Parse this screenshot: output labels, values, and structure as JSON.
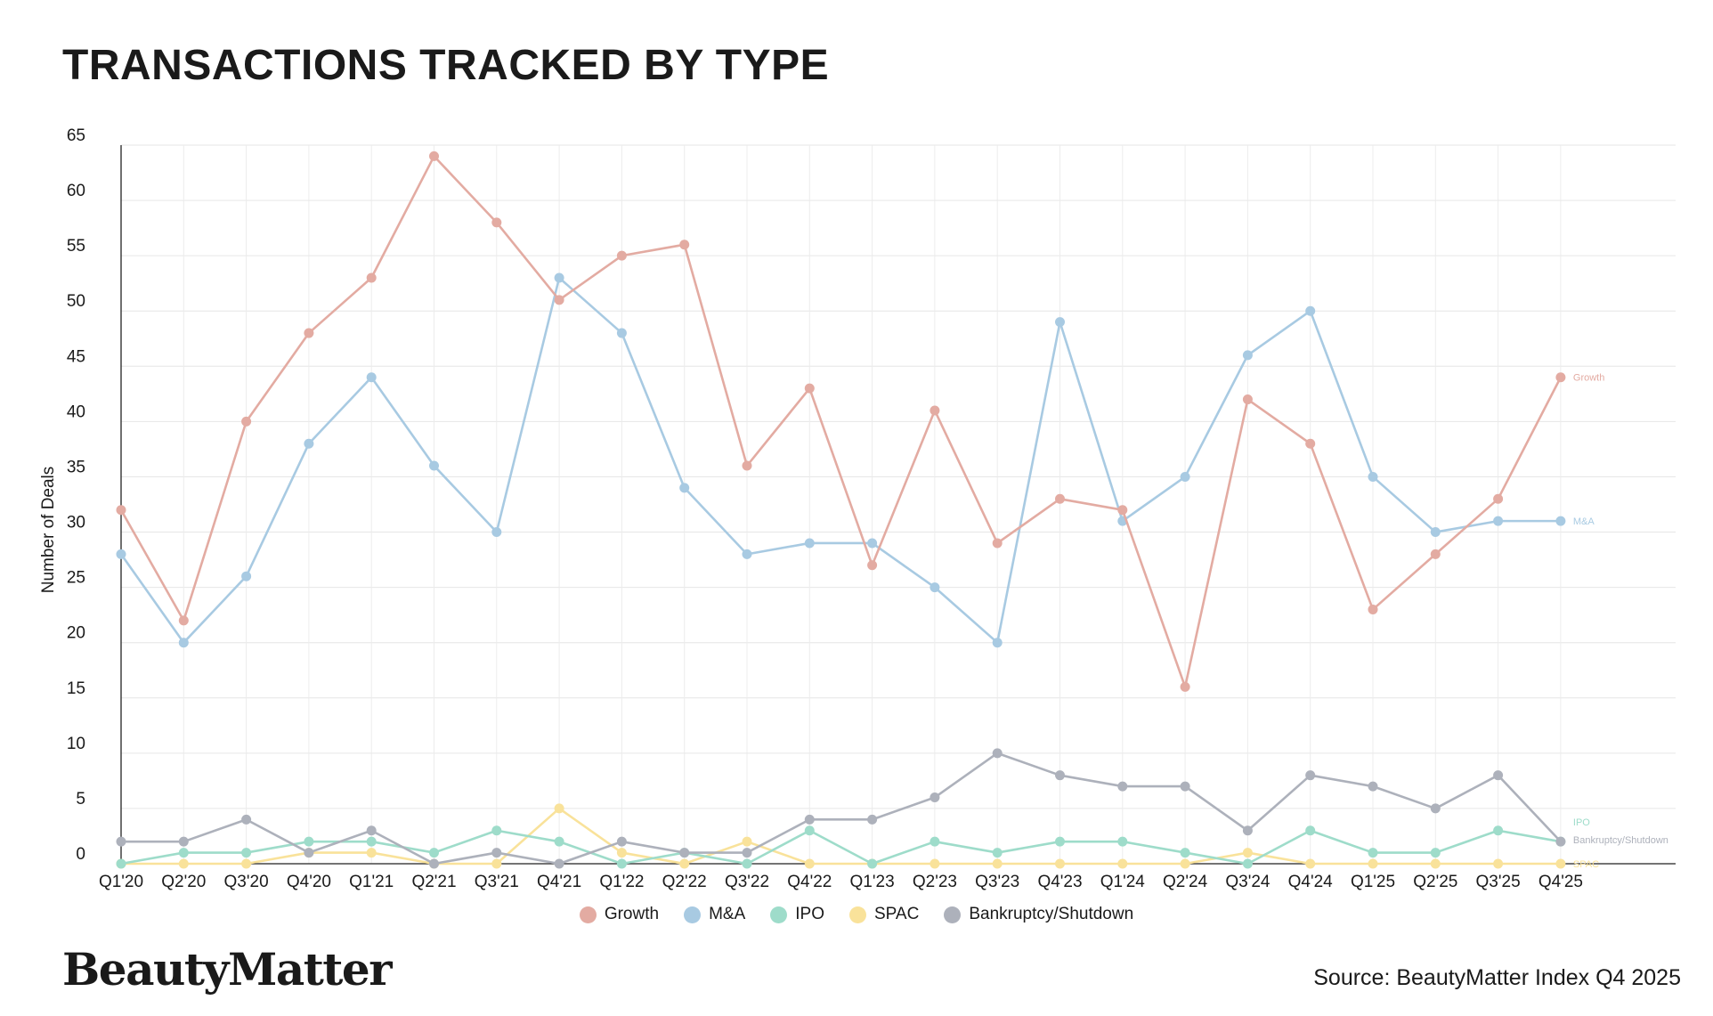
{
  "title": "TRANSACTIONS TRACKED BY TYPE",
  "brand": "BeautyMatter",
  "source": "Source: BeautyMatter Index Q4 2025",
  "colors": {
    "growth": "#e3aba2",
    "ma": "#a8cae2",
    "ipo": "#9edcca",
    "spac": "#f9e29a",
    "bankruptcy": "#adb1bb"
  },
  "chart_data": {
    "type": "line",
    "title": "TRANSACTIONS TRACKED BY TYPE",
    "xlabel": "",
    "ylabel": "Number of Deals",
    "ylim": [
      0,
      65
    ],
    "yticks": [
      0,
      5,
      10,
      15,
      20,
      25,
      30,
      35,
      40,
      45,
      50,
      55,
      60,
      65
    ],
    "grid": true,
    "legend": "bottom",
    "categories": [
      "Q1'20",
      "Q2'20",
      "Q3'20",
      "Q4'20",
      "Q1'21",
      "Q2'21",
      "Q3'21",
      "Q4'21",
      "Q1'22",
      "Q2'22",
      "Q3'22",
      "Q4'22",
      "Q1'23",
      "Q2'23",
      "Q3'23",
      "Q4'23",
      "Q1'24",
      "Q2'24",
      "Q3'24",
      "Q4'24",
      "Q1'25",
      "Q2'25",
      "Q3'25",
      "Q4'25"
    ],
    "series": [
      {
        "name": "Growth",
        "end_label": "Growth",
        "color": "#e3aba2",
        "values": [
          32,
          22,
          40,
          48,
          53,
          64,
          58,
          51,
          55,
          56,
          36,
          43,
          27,
          41,
          29,
          33,
          32,
          16,
          42,
          38,
          23,
          28,
          33,
          44
        ]
      },
      {
        "name": "M&A",
        "end_label": "M&A",
        "color": "#a8cae2",
        "values": [
          28,
          20,
          26,
          38,
          44,
          36,
          30,
          53,
          48,
          34,
          28,
          29,
          29,
          25,
          20,
          49,
          31,
          35,
          46,
          50,
          35,
          30,
          31,
          31
        ]
      },
      {
        "name": "IPO",
        "end_label": "IPO",
        "color": "#9edcca",
        "values": [
          0,
          1,
          1,
          2,
          2,
          1,
          3,
          2,
          0,
          1,
          0,
          3,
          0,
          2,
          1,
          2,
          2,
          1,
          0,
          3,
          1,
          1,
          3,
          2
        ]
      },
      {
        "name": "SPAC",
        "end_label": "SPAC",
        "color": "#f9e29a",
        "values": [
          0,
          0,
          0,
          1,
          1,
          0,
          0,
          5,
          1,
          0,
          2,
          0,
          0,
          0,
          0,
          0,
          0,
          0,
          1,
          0,
          0,
          0,
          0,
          0
        ]
      },
      {
        "name": "Bankruptcy/Shutdown",
        "end_label": "Bankruptcy/Shutdown",
        "color": "#adb1bb",
        "values": [
          2,
          2,
          4,
          1,
          3,
          0,
          1,
          0,
          2,
          1,
          1,
          4,
          4,
          6,
          10,
          8,
          7,
          7,
          3,
          8,
          7,
          5,
          8,
          2
        ]
      }
    ]
  }
}
